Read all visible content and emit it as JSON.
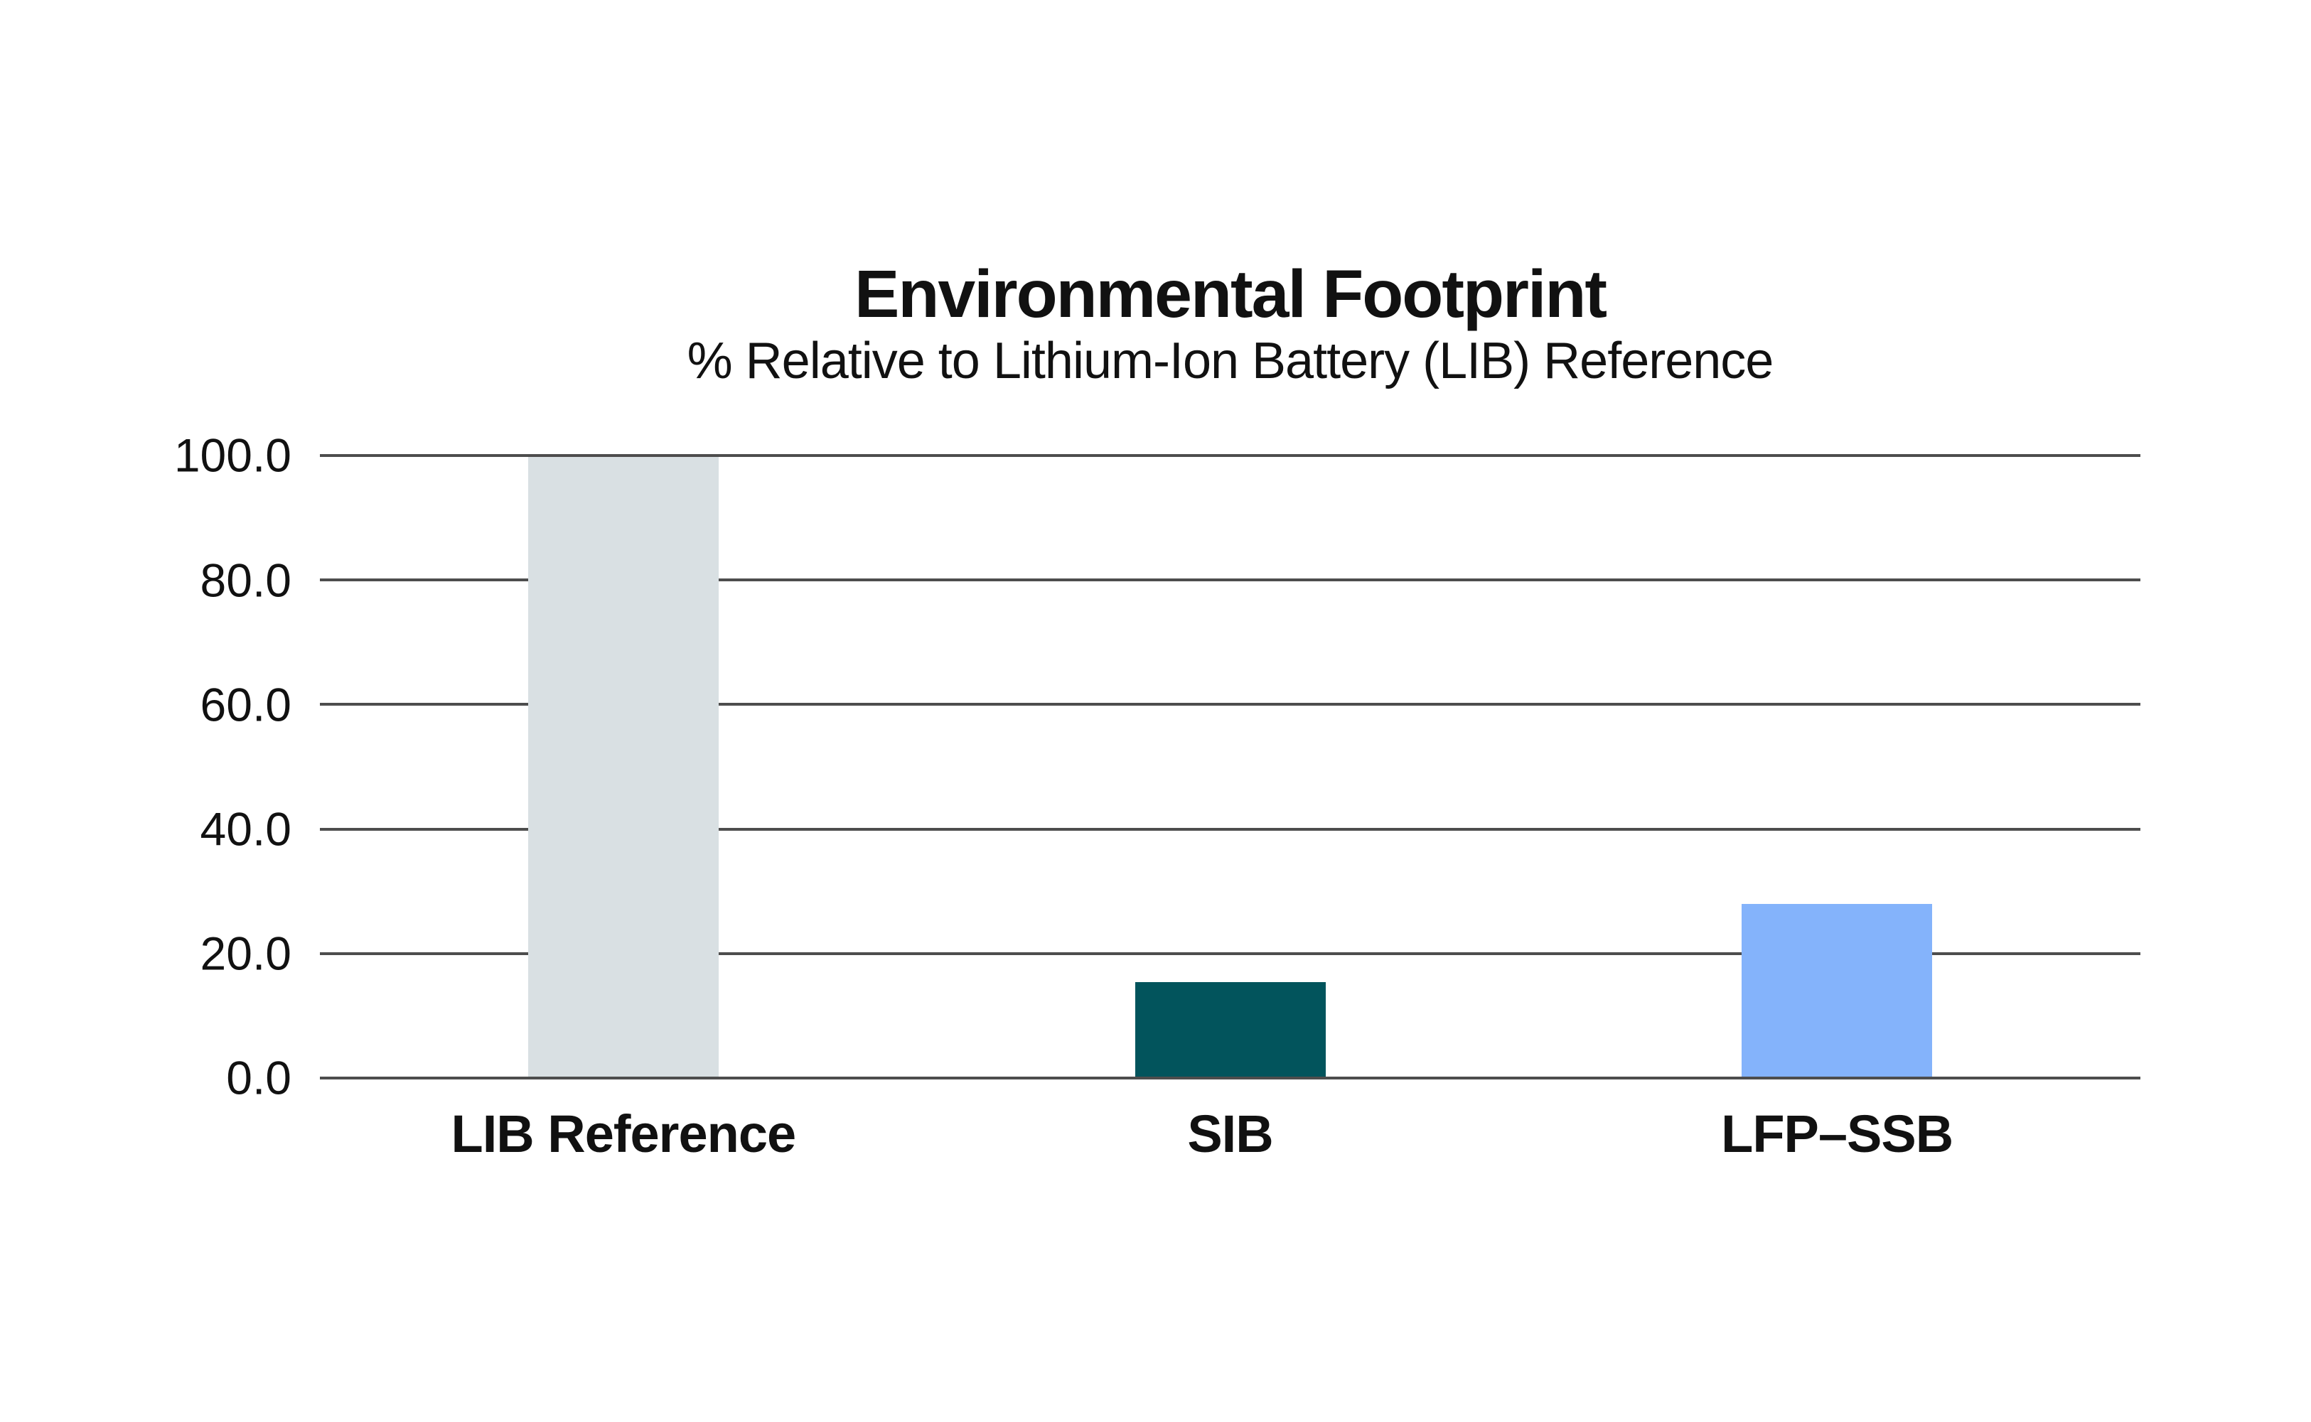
{
  "chart_data": {
    "type": "bar",
    "title": "Environmental Footprint",
    "subtitle": "% Relative to Lithium-Ion Battery (LIB) Reference",
    "categories": [
      "LIB Reference",
      "SIB",
      "LFP–SSB"
    ],
    "values": [
      100.0,
      15.4,
      28.0
    ],
    "bar_colors": [
      "#d9e0e3",
      "#02545c",
      "#84b3fb"
    ],
    "ylim": [
      0,
      100
    ],
    "yticks": [
      {
        "value": 0,
        "label": "0.0"
      },
      {
        "value": 20,
        "label": "20.0"
      },
      {
        "value": 40,
        "label": "40.0"
      },
      {
        "value": 60,
        "label": "60.0"
      },
      {
        "value": 80,
        "label": "80.0"
      },
      {
        "value": 100,
        "label": "100.0"
      }
    ],
    "xlabel": "",
    "ylabel": "",
    "legend": "none",
    "grid": "horizontal",
    "colors": {
      "background": "#ffffff",
      "gridline": "#4d4d4d",
      "text": "#111111"
    }
  }
}
